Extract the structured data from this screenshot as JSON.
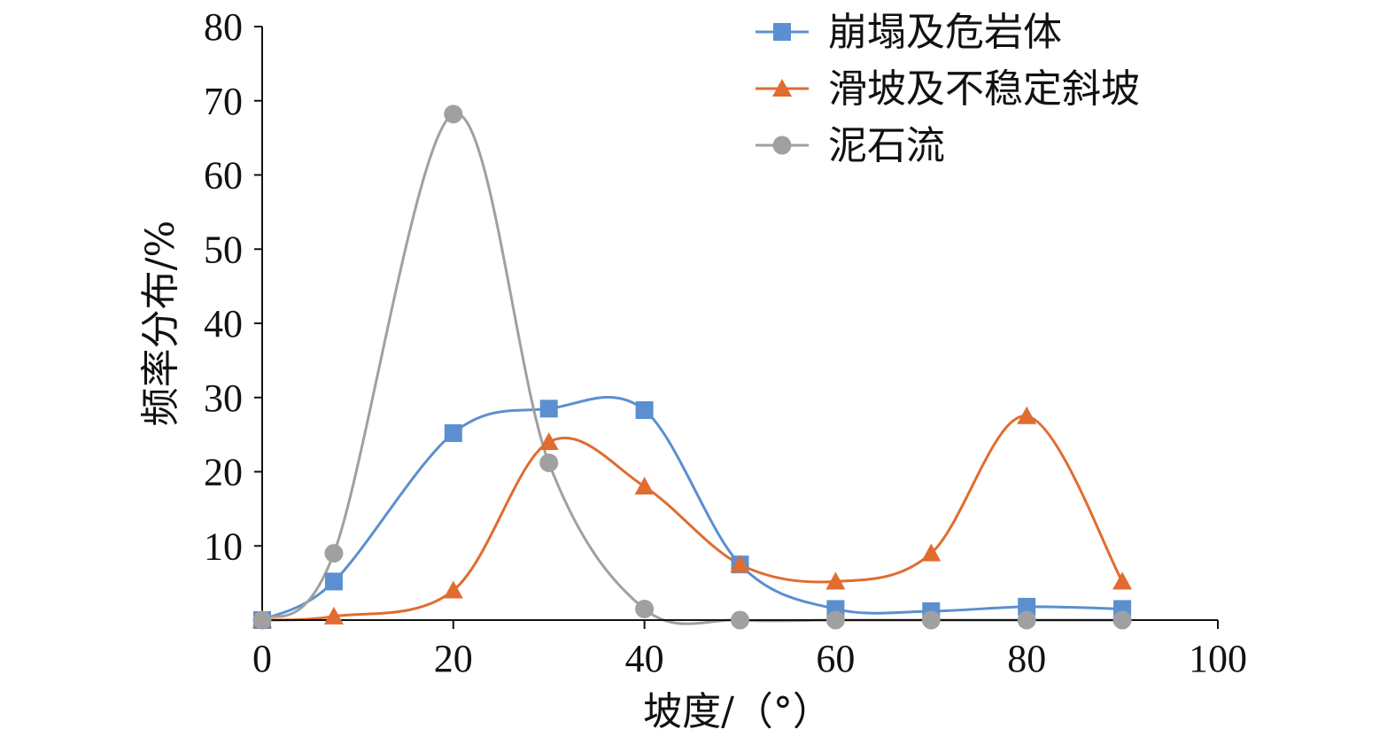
{
  "chart_data": {
    "type": "line",
    "title": "",
    "xlabel": "坡度/（°）",
    "ylabel": "频率分布/%",
    "xlim": [
      0,
      100
    ],
    "ylim": [
      0,
      80
    ],
    "xticks": [
      0,
      20,
      40,
      60,
      80,
      100
    ],
    "yticks": [
      10,
      20,
      30,
      40,
      50,
      60,
      70,
      80
    ],
    "xtick_labels": [
      "0",
      "20",
      "40",
      "60",
      "80",
      "100"
    ],
    "ytick_labels": [
      "10",
      "20",
      "30",
      "40",
      "50",
      "60",
      "70",
      "80"
    ],
    "grid": false,
    "legend_position": "top-right",
    "smooth": true,
    "series": [
      {
        "name": "崩塌及危岩体",
        "color": "#5b8fd0",
        "marker": "square",
        "x": [
          0,
          7.5,
          20,
          30,
          40,
          50,
          60,
          70,
          80,
          90
        ],
        "y": [
          0,
          5.2,
          25.2,
          28.5,
          28.3,
          7.5,
          1.5,
          1.2,
          1.8,
          1.5
        ]
      },
      {
        "name": "滑坡及不稳定斜坡",
        "color": "#e06c30",
        "marker": "triangle",
        "x": [
          0,
          7.5,
          20,
          30,
          40,
          50,
          60,
          70,
          80,
          90
        ],
        "y": [
          0,
          0.5,
          4.0,
          24.0,
          18.0,
          7.5,
          5.2,
          9.0,
          27.5,
          5.2
        ]
      },
      {
        "name": "泥石流",
        "color": "#a0a0a0",
        "marker": "circle",
        "x": [
          0,
          7.5,
          20,
          30,
          40,
          50,
          60,
          70,
          80,
          90
        ],
        "y": [
          0,
          9.0,
          68.2,
          21.2,
          1.5,
          0,
          0,
          0,
          0,
          0
        ]
      }
    ]
  }
}
